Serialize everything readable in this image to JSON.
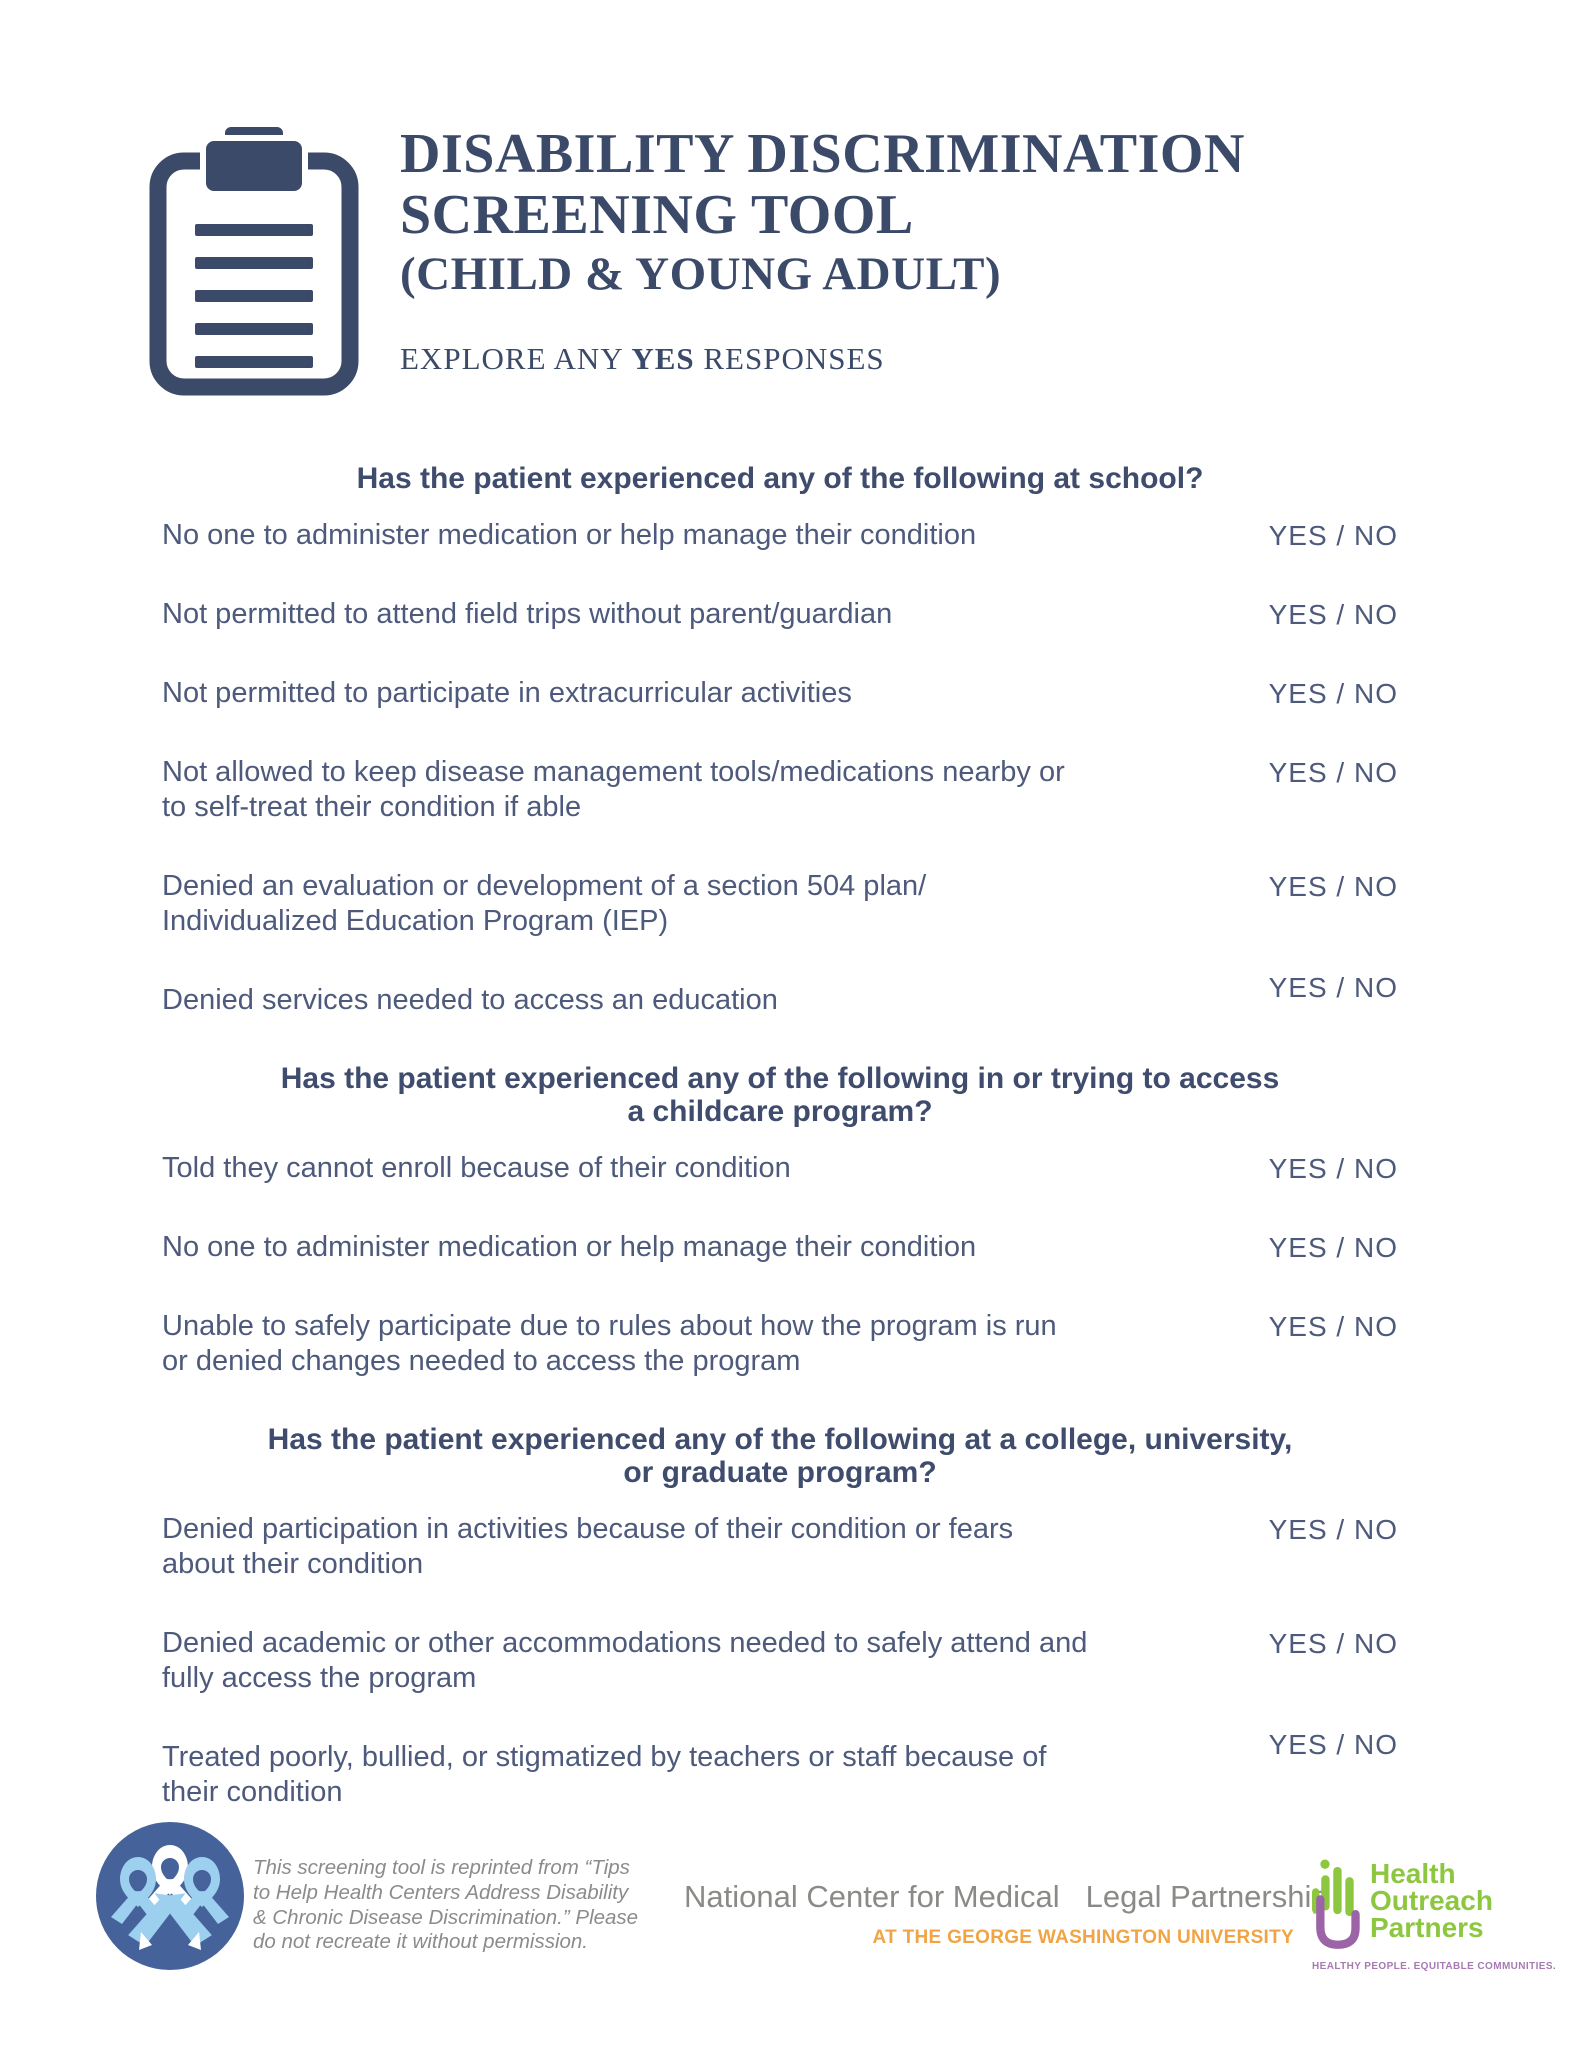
{
  "header": {
    "title_line1": "DISABILITY DISCRIMINATION",
    "title_line2": "SCREENING TOOL",
    "title_line3": "(CHILD & YOUNG ADULT)",
    "subtitle_prefix": "EXPLORE ANY ",
    "subtitle_bold": "YES",
    "subtitle_suffix": " RESPONSES"
  },
  "answer_label": "YES / NO",
  "sections": [
    {
      "heading_lines": [
        "Has the patient experienced any of the following at school?"
      ],
      "questions": [
        {
          "lines": [
            "No one to administer medication or help manage their condition"
          ]
        },
        {
          "lines": [
            "Not permitted to attend field trips without parent/guardian"
          ]
        },
        {
          "lines": [
            "Not permitted to participate in extracurricular activities"
          ]
        },
        {
          "lines": [
            "Not allowed to keep disease management tools/medications nearby or",
            "to self-treat their condition if able"
          ]
        },
        {
          "lines": [
            "Denied an evaluation or development of a section 504 plan/",
            "Individualized Education Program (IEP)"
          ]
        },
        {
          "lines": [
            "Denied services needed to access an education"
          ],
          "raised": true
        }
      ]
    },
    {
      "heading_lines": [
        "Has the patient experienced any of the following in or trying to access",
        "a childcare program?"
      ],
      "questions": [
        {
          "lines": [
            "Told they cannot enroll because of their condition"
          ]
        },
        {
          "lines": [
            "No one to administer medication or help manage their condition"
          ]
        },
        {
          "lines": [
            "Unable to safely participate due to rules about how the program is run",
            "or denied changes needed to access the program"
          ]
        }
      ]
    },
    {
      "heading_lines": [
        "Has the patient experienced any of the following at a college, university,",
        "or graduate program?"
      ],
      "questions": [
        {
          "lines": [
            "Denied participation in activities because of their condition or fears",
            "about their condition"
          ]
        },
        {
          "lines": [
            "Denied academic or other accommodations needed to safely attend and",
            "fully access the program"
          ]
        },
        {
          "lines": [
            "Treated poorly, bullied, or stigmatized by teachers or staff because of",
            "their condition"
          ],
          "raised": true
        }
      ]
    }
  ],
  "footer": {
    "reprint_lines": [
      "This screening tool is reprinted from “Tips",
      "to Help Health Centers Address Disability",
      "& Chronic Disease Discrimination.”  Please",
      "do not recreate it without permission."
    ],
    "ncmlp": {
      "part1": "National Center for Medical",
      "part2": "Legal Partnership",
      "tagline": "AT THE GEORGE WASHINGTON UNIVERSITY"
    },
    "hop": {
      "line1": "Health",
      "line2": "Outreach",
      "line3": "Partners",
      "tagline": "HEALTHY PEOPLE. EQUITABLE COMMUNITIES."
    }
  },
  "colors": {
    "navy": "#3c4a69",
    "heading_navy": "#3f4c6d",
    "body_navy": "#4e5a7c",
    "footer_gray": "#8b8b8b",
    "ncmlp_gray": "#8a8a87",
    "ncmlp_gold": "#eaaa52",
    "gwu_orange": "#f0a444",
    "hop_green": "#8dc63f",
    "hop_purple": "#9c64a6",
    "ribbon_circle_blue": "#45639a",
    "ribbon_light_blue": "#9dcfee"
  }
}
